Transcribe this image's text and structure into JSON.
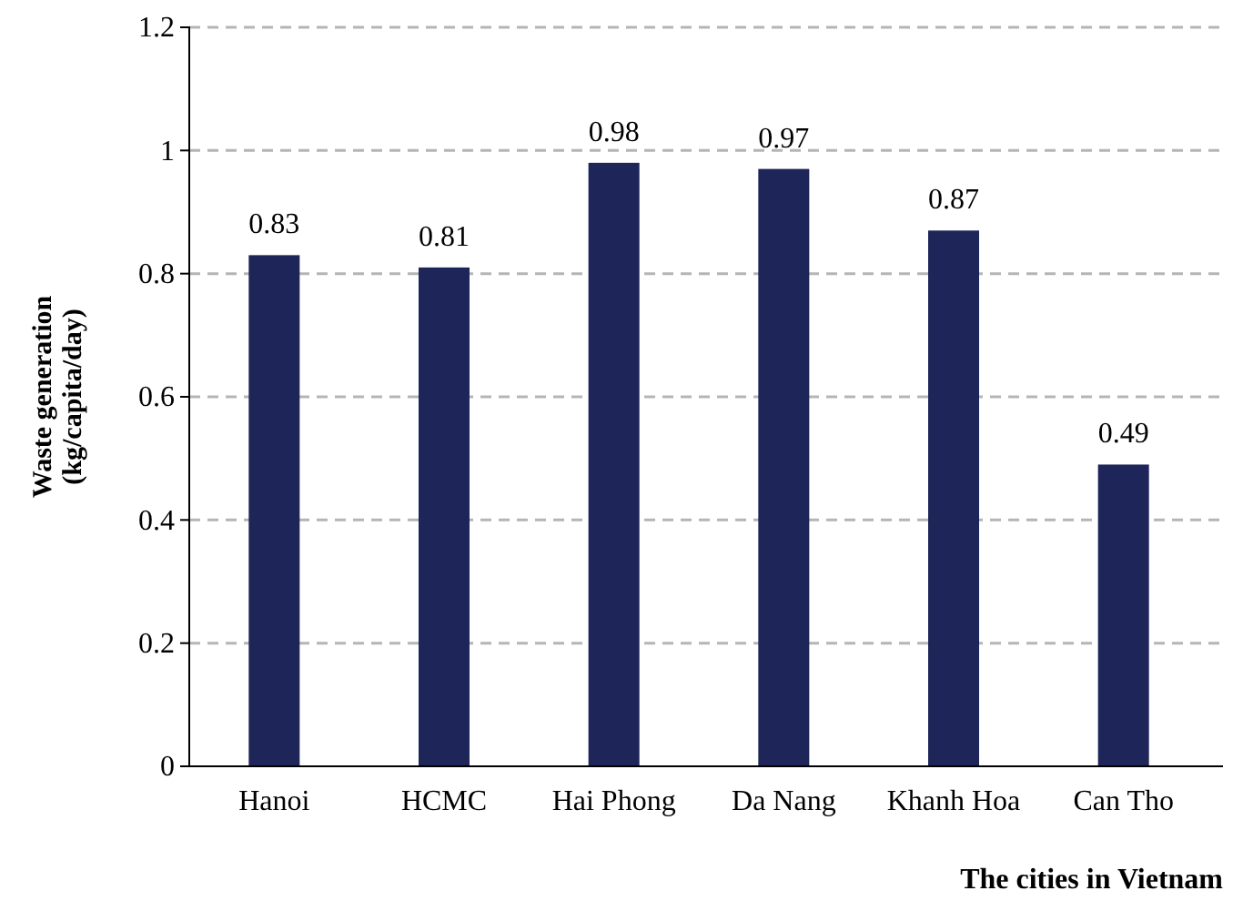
{
  "chart_data": {
    "type": "bar",
    "xlabel": "The cities in Vietnam",
    "ylabel": "Waste generation (kg/capita/day)",
    "categories": [
      "Hanoi",
      "HCMC",
      "Hai Phong",
      "Da Nang",
      "Khanh Hoa",
      "Can Tho"
    ],
    "values": [
      0.83,
      0.81,
      0.98,
      0.97,
      0.87,
      0.49
    ],
    "color": "#1e2659",
    "ylim": [
      0,
      1.2
    ],
    "yticks": [
      0,
      0.2,
      0.4,
      0.6,
      0.8,
      1,
      1.2
    ],
    "grid": "y",
    "data_labels": true
  }
}
